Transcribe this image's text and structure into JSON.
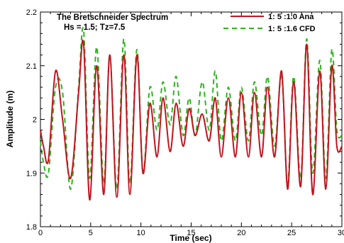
{
  "chart_data": {
    "type": "line",
    "title": "The Bretschneider Spectrum",
    "subtitle": "Hs = 1.5; Tz=7.5",
    "xlabel": "Time (sec)",
    "ylabel": "Amplitude (m)",
    "xlim": [
      0,
      30
    ],
    "ylim": [
      1.8,
      2.2
    ],
    "xticks": [
      0,
      5,
      10,
      15,
      20,
      25,
      30
    ],
    "xtick_labels": [
      "0",
      "5",
      "10",
      "15",
      "20",
      "25",
      "30"
    ],
    "yticks": [
      1.8,
      1.9,
      2.0,
      2.1,
      2.2
    ],
    "ytick_labels": [
      "1.8",
      "1.9",
      "2",
      "2.1",
      "2.2"
    ],
    "grid": false,
    "legend_position": "top-right",
    "series": [
      {
        "name": "1: 5 :1.0 Ana",
        "color": "#c0141e",
        "style": "solid",
        "x": [
          0,
          0.3,
          0.8,
          1.5,
          2.2,
          3.0,
          3.8,
          4.3,
          4.9,
          5.6,
          6.3,
          6.9,
          7.6,
          8.3,
          8.9,
          9.6,
          10.2,
          10.9,
          11.6,
          12.2,
          12.9,
          13.5,
          14.2,
          14.8,
          15.4,
          16.1,
          16.8,
          17.4,
          18.0,
          18.7,
          19.4,
          20.0,
          20.7,
          21.3,
          22.0,
          22.6,
          23.3,
          24.0,
          24.6,
          25.2,
          25.9,
          26.5,
          27.1,
          27.8,
          28.4,
          29.0,
          29.5,
          30.0
        ],
        "values": [
          1.98,
          1.95,
          1.925,
          2.09,
          2.0,
          1.89,
          2.05,
          2.14,
          1.85,
          2.1,
          1.86,
          2.12,
          1.855,
          2.12,
          1.86,
          2.12,
          1.9,
          2.03,
          1.93,
          2.04,
          1.94,
          2.03,
          1.95,
          2.02,
          1.97,
          2.01,
          1.96,
          2.04,
          1.93,
          2.04,
          1.93,
          2.05,
          1.93,
          2.05,
          1.93,
          2.06,
          1.93,
          2.09,
          1.87,
          2.07,
          1.875,
          2.14,
          1.86,
          2.09,
          1.87,
          2.1,
          1.95,
          1.95
        ]
      },
      {
        "name": "1: 5 :1.6  CFD",
        "color": "#2fb31f",
        "style": "dashed",
        "x": [
          0,
          0.3,
          0.8,
          1.5,
          2.2,
          3.0,
          3.8,
          4.3,
          4.9,
          5.6,
          6.3,
          6.9,
          7.6,
          8.3,
          8.9,
          9.6,
          10.2,
          10.9,
          11.6,
          12.2,
          12.9,
          13.5,
          14.2,
          14.8,
          15.4,
          16.1,
          16.8,
          17.4,
          18.0,
          18.7,
          19.4,
          20.0,
          20.7,
          21.3,
          22.0,
          22.6,
          23.3,
          24.0,
          24.6,
          25.2,
          25.9,
          26.5,
          27.1,
          27.8,
          28.4,
          29.0,
          29.5,
          30.0
        ],
        "values": [
          1.96,
          1.92,
          1.9,
          2.06,
          2.05,
          1.87,
          2.06,
          2.165,
          1.89,
          2.135,
          1.88,
          2.12,
          1.87,
          2.15,
          1.88,
          2.13,
          1.9,
          2.06,
          1.98,
          2.07,
          1.99,
          2.08,
          1.97,
          2.04,
          1.97,
          2.07,
          1.98,
          2.09,
          1.96,
          2.06,
          1.96,
          2.06,
          1.96,
          2.07,
          1.97,
          2.08,
          1.95,
          2.08,
          1.88,
          2.08,
          1.89,
          2.15,
          1.9,
          2.11,
          1.89,
          2.13,
          1.98,
          1.97
        ]
      }
    ]
  }
}
